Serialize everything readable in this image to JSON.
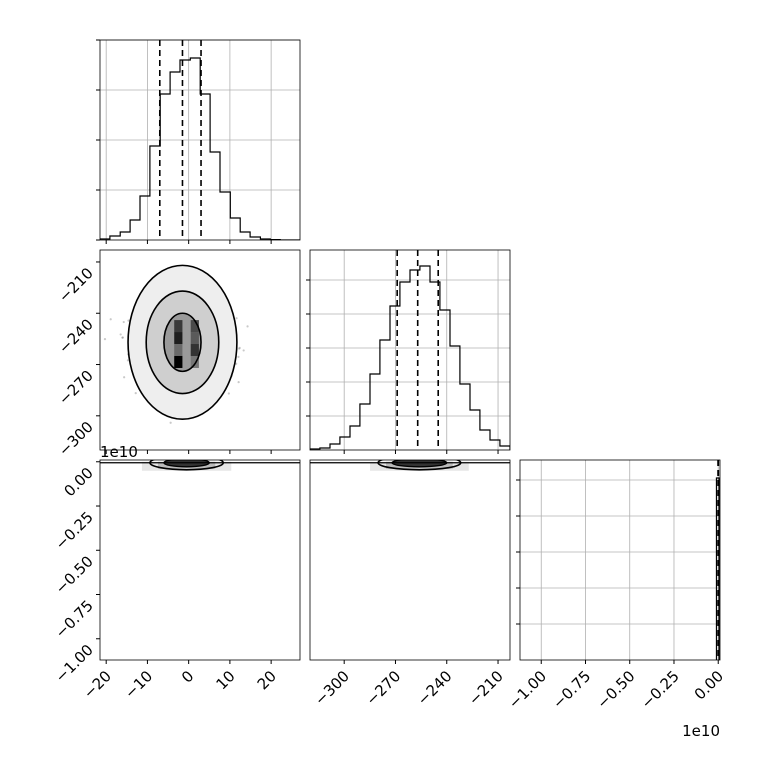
{
  "chart_data": {
    "type": "corner",
    "parameters": [
      {
        "id": "p0",
        "range": [
          -21.5,
          27
        ],
        "ticks": [
          -20,
          -10,
          0,
          10,
          20
        ],
        "tick_labels": [
          "−20",
          "−10",
          "0",
          "10",
          "20"
        ],
        "offset_label": ""
      },
      {
        "id": "p1",
        "range": [
          -320,
          -203
        ],
        "ticks": [
          -300,
          -270,
          -240,
          -210
        ],
        "tick_labels": [
          "−300",
          "−270",
          "−240",
          "−210"
        ],
        "offset_label": "1e10"
      },
      {
        "id": "p2",
        "range": [
          -1.12,
          0.01
        ],
        "ticks": [
          -1.0,
          -0.75,
          -0.5,
          -0.25,
          0.0
        ],
        "tick_labels": [
          "−1.00",
          "−0.75",
          "−0.50",
          "−0.25",
          "0.00"
        ],
        "offset_label": "1e10"
      }
    ],
    "hist_p0": {
      "edges": [
        -21.5,
        -19.1,
        -16.6,
        -14.2,
        -11.8,
        -9.4,
        -6.9,
        -4.5,
        -2.1,
        0.4,
        2.8,
        5.2,
        7.6,
        10.1,
        12.5,
        14.9,
        17.4,
        19.8,
        22.2,
        24.6,
        27.0
      ],
      "heights": [
        0.005,
        0.02,
        0.04,
        0.1,
        0.22,
        0.47,
        0.73,
        0.84,
        0.9,
        0.91,
        0.73,
        0.44,
        0.24,
        0.11,
        0.04,
        0.015,
        0.005,
        0.002,
        0,
        0
      ],
      "max": 1.0,
      "quantiles": [
        -7.0,
        -1.5,
        3.0
      ]
    },
    "hist_p1": {
      "edges": [
        -320,
        -314.2,
        -308.3,
        -302.5,
        -296.6,
        -290.8,
        -284.9,
        -279.1,
        -273.2,
        -267.4,
        -261.5,
        -255.7,
        -249.8,
        -244.0,
        -238.1,
        -232.3,
        -226.4,
        -220.6,
        -214.7,
        -208.9,
        -203.0
      ],
      "heights": [
        0.005,
        0.01,
        0.03,
        0.065,
        0.12,
        0.23,
        0.38,
        0.55,
        0.72,
        0.84,
        0.9,
        0.92,
        0.84,
        0.7,
        0.52,
        0.33,
        0.2,
        0.1,
        0.05,
        0.02
      ],
      "max": 1.0,
      "quantiles": [
        -269,
        -257,
        -245
      ]
    },
    "hist_p2": {
      "bar": {
        "x0": -0.01,
        "x1": 0.005,
        "height": 0.5
      },
      "max": 1.1,
      "quantiles": [
        -0.001,
        0.0,
        0.0005
      ]
    },
    "scatter_p0_p1": {
      "center": [
        -1.5,
        -257
      ],
      "sigma": [
        5.0,
        11.7
      ],
      "contours": [
        {
          "rx": 4.5,
          "ry": 17
        },
        {
          "rx": 8.8,
          "ry": 30
        },
        {
          "rx": 13.2,
          "ry": 45
        }
      ]
    },
    "collapsed_p2": {
      "y": 0.0,
      "spread_p0": [
        -6,
        5
      ],
      "spread_p1": [
        -272,
        -240
      ]
    }
  }
}
